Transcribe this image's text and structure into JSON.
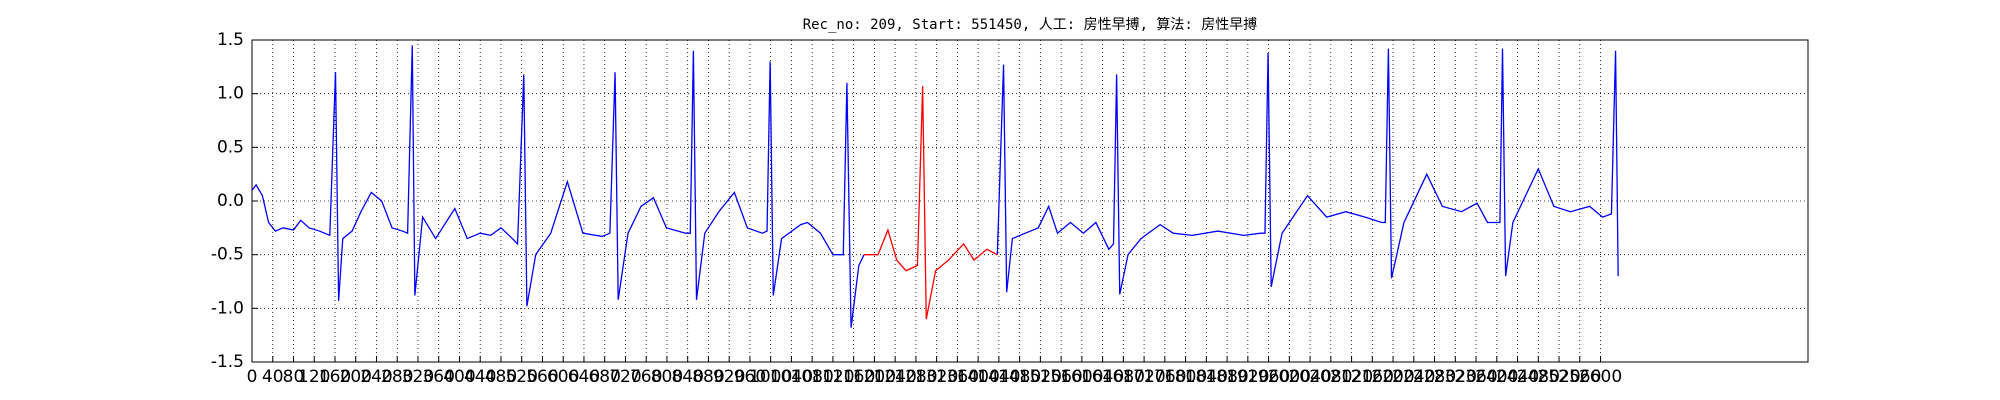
{
  "chart_data": {
    "type": "line",
    "title": "Rec_no: 209, Start: 551450, 人工: 房性早搏, 算法: 房性早搏",
    "xlim": [
      0,
      3000
    ],
    "ylim": [
      -1.5,
      1.5
    ],
    "xticks": [
      0,
      40,
      80,
      120,
      160,
      200,
      240,
      280,
      320,
      360,
      400,
      440,
      480,
      520,
      560,
      600,
      640,
      680,
      720,
      760,
      800,
      840,
      880,
      920,
      960,
      1000,
      1040,
      1080,
      1120,
      1160,
      1200,
      1240,
      1280,
      1320,
      1360,
      1400,
      1440,
      1480,
      1520,
      1560,
      1600,
      1640,
      1680,
      1720,
      1760,
      1800,
      1840,
      1880,
      1920,
      1960,
      2000,
      2040,
      2080,
      2120,
      2160,
      2200,
      2240,
      2280,
      2320,
      2360,
      2400,
      2440,
      2480,
      2520,
      2560,
      2600
    ],
    "yticks": [
      -1.5,
      {
        "value": -1.0,
        "label": "-1.0"
      },
      -0.5,
      {
        "value": 0.0,
        "label": "0.0"
      },
      0.5,
      {
        "value": 1.0,
        "label": "1.0"
      },
      1.5
    ],
    "grid": true,
    "series": [
      {
        "color": "#0000ff",
        "x": [
          0,
          8,
          20,
          32,
          45,
          60,
          80,
          94,
          110,
          130,
          150,
          161,
          167,
          175,
          193,
          210,
          230,
          250,
          270,
          290,
          300,
          309,
          314,
          329,
          354,
          391,
          415,
          440,
          460,
          480,
          502,
          512,
          524,
          530,
          547,
          576,
          608,
          638,
          675,
          690,
          700,
          706,
          725,
          750,
          774,
          799,
          836,
          845,
          851,
          857,
          873,
          900,
          930,
          955,
          984,
          993,
          999,
          1005,
          1021,
          1058,
          1071,
          1096,
          1120,
          1140,
          1147,
          1155,
          1170,
          1180,
          1300,
          1437,
          1449,
          1455,
          1466,
          1491,
          1516,
          1536,
          1553,
          1578,
          1603,
          1627,
          1652,
          1661,
          1667,
          1673,
          1689,
          1714,
          1751,
          1776,
          1813,
          1862,
          1912,
          1945,
          1953,
          1959,
          1965,
          1986,
          2035,
          2072,
          2109,
          2146,
          2178,
          2185,
          2191,
          2197,
          2221,
          2265,
          2295,
          2332,
          2362,
          2382,
          2401,
          2406,
          2411,
          2417,
          2431,
          2480,
          2510,
          2542,
          2579,
          2604,
          2621,
          2629,
          2634
        ],
        "values": [
          0.1,
          0.15,
          0.05,
          -0.2,
          -0.28,
          -0.25,
          -0.27,
          -0.18,
          -0.25,
          -0.28,
          -0.32,
          1.2,
          -0.93,
          -0.35,
          -0.28,
          -0.1,
          0.08,
          0.0,
          -0.25,
          -0.28,
          -0.3,
          1.45,
          -0.88,
          -0.15,
          -0.35,
          -0.07,
          -0.35,
          -0.3,
          -0.32,
          -0.25,
          -0.35,
          -0.4,
          1.18,
          -0.98,
          -0.5,
          -0.3,
          0.18,
          -0.3,
          -0.33,
          -0.3,
          1.2,
          -0.92,
          -0.3,
          -0.05,
          0.03,
          -0.25,
          -0.3,
          -0.3,
          1.4,
          -0.92,
          -0.3,
          -0.1,
          0.08,
          -0.25,
          -0.3,
          -0.28,
          1.3,
          -0.88,
          -0.35,
          -0.22,
          -0.2,
          -0.3,
          -0.5,
          -0.5,
          1.1,
          -1.18,
          -0.6,
          -0.5,
          null,
          -0.5,
          1.27,
          -0.85,
          -0.35,
          -0.3,
          -0.25,
          -0.05,
          -0.3,
          -0.2,
          -0.3,
          -0.2,
          -0.45,
          -0.4,
          1.18,
          -0.87,
          -0.5,
          -0.35,
          -0.22,
          -0.3,
          -0.32,
          -0.28,
          -0.32,
          -0.3,
          -0.3,
          1.38,
          -0.8,
          -0.3,
          0.05,
          -0.15,
          -0.1,
          -0.15,
          -0.2,
          -0.2,
          1.42,
          -0.72,
          -0.2,
          0.25,
          -0.05,
          -0.1,
          -0.02,
          -0.2,
          -0.2,
          -0.2,
          1.42,
          -0.7,
          -0.2,
          0.3,
          -0.05,
          -0.1,
          -0.05,
          -0.15,
          -0.12,
          1.4,
          -0.7
        ]
      },
      {
        "color": "#ff0000",
        "x": [
          1180,
          1207,
          1226,
          1243,
          1261,
          1283,
          1293,
          1300,
          1318,
          1343,
          1372,
          1392,
          1417,
          1437
        ],
        "values": [
          -0.5,
          -0.5,
          -0.27,
          -0.55,
          -0.65,
          -0.6,
          1.07,
          -1.1,
          -0.65,
          -0.55,
          -0.4,
          -0.55,
          -0.45,
          -0.5
        ]
      }
    ]
  }
}
